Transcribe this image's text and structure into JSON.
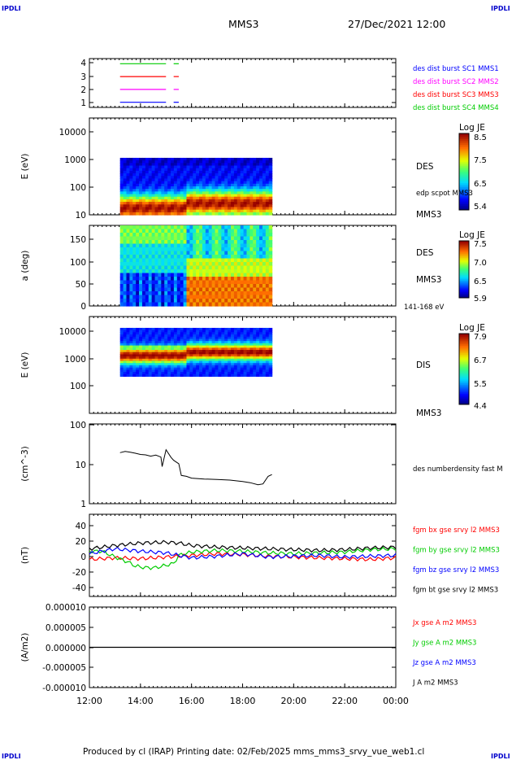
{
  "header": {
    "corner_label": "IPDLI",
    "title": "MMS3",
    "date": "27/Dec/2021 12:00"
  },
  "footer": {
    "text": "Produced by cl (IRAP)   Printing date: 02/Feb/2025   mms_mms3_srvy_vue_web1.cl"
  },
  "time_axis": {
    "ticks": [
      "12:00",
      "14:00",
      "16:00",
      "18:00",
      "20:00",
      "22:00",
      "00:00"
    ],
    "start_hours": 12,
    "end_hours": 24
  },
  "colors": {
    "blue": "#0000ff",
    "magenta": "#ff00ff",
    "red": "#ff0000",
    "green": "#00cc00",
    "black": "#000000"
  },
  "chart_data": [
    {
      "id": "burst",
      "type": "line",
      "ylim": [
        0.6,
        4.4
      ],
      "ytick_labels": [
        "4",
        "3",
        "2",
        "1"
      ],
      "legend": [
        "des dist burst SC1 MMS1",
        "des dist burst SC2 MMS2",
        "des dist burst SC3 MMS3",
        "des dist burst SC4 MMS4"
      ],
      "legend_colors": [
        "#0000ff",
        "#ff00ff",
        "#ff0000",
        "#00cc00"
      ],
      "series": [
        {
          "level": 4,
          "color": "#00cc00",
          "segments": [
            [
              13.2,
              15.0
            ],
            [
              15.3,
              15.5
            ]
          ]
        },
        {
          "level": 3,
          "color": "#ff0000",
          "segments": [
            [
              13.2,
              15.0
            ],
            [
              15.3,
              15.5
            ]
          ]
        },
        {
          "level": 2,
          "color": "#ff00ff",
          "segments": [
            [
              13.2,
              15.0
            ],
            [
              15.3,
              15.5
            ]
          ]
        },
        {
          "level": 1,
          "color": "#0000ff",
          "segments": [
            [
              13.2,
              15.0
            ],
            [
              15.3,
              15.5
            ]
          ]
        }
      ]
    },
    {
      "id": "des-energy",
      "type": "heatmap",
      "ylabel": "E (eV)",
      "scale": "log",
      "ylim": [
        10,
        25000
      ],
      "ytick_labels": [
        "10000",
        "1000",
        "100",
        "10"
      ],
      "data_xlim": [
        13.2,
        19.15
      ],
      "data_ylim": [
        10,
        1000
      ],
      "side_labels": [
        "DES",
        "edp scpot MMS3",
        "MMS3"
      ],
      "colorbar": {
        "label": "Log JE",
        "ticks": [
          "8.5",
          "7.5",
          "6.5",
          "5.4"
        ]
      }
    },
    {
      "id": "des-pitch",
      "type": "heatmap",
      "ylabel": "a (deg)",
      "ylim": [
        0,
        180
      ],
      "ytick_labels": [
        "150",
        "100",
        "50",
        "0"
      ],
      "data_xlim": [
        13.2,
        19.15
      ],
      "side_labels": [
        "DES",
        "MMS3",
        "141-168 eV"
      ],
      "colorbar": {
        "label": "Log JE",
        "ticks": [
          "7.5",
          "7.0",
          "6.5",
          "5.9"
        ]
      }
    },
    {
      "id": "dis-energy",
      "type": "heatmap",
      "ylabel": "E (eV)",
      "scale": "log",
      "ylim": [
        10,
        25000
      ],
      "ytick_labels": [
        "10000",
        "1000",
        "100"
      ],
      "data_xlim": [
        13.2,
        19.15
      ],
      "data_ylim": [
        200,
        10000
      ],
      "side_labels": [
        "DIS",
        "MMS3"
      ],
      "colorbar": {
        "label": "Log JE",
        "ticks": [
          "7.9",
          "6.7",
          "5.5",
          "4.4"
        ]
      }
    },
    {
      "id": "density",
      "type": "line",
      "ylabel": "(cm^-3)",
      "scale": "log",
      "ylim": [
        1,
        100
      ],
      "ytick_labels": [
        "100",
        "10",
        "1"
      ],
      "legend": [
        "des numberdensity fast M"
      ],
      "series": [
        {
          "name": "des numberdensity fast M",
          "color": "#000000",
          "x": [
            13.2,
            13.4,
            13.6,
            13.8,
            14.0,
            14.2,
            14.4,
            14.6,
            14.8,
            14.85,
            15.0,
            15.2,
            15.3,
            15.5,
            15.6,
            15.8,
            16.0,
            16.5,
            17.0,
            17.5,
            18.0,
            18.3,
            18.6,
            18.8,
            19.0,
            19.15
          ],
          "y": [
            19,
            20,
            19,
            18,
            17,
            17,
            16,
            17,
            15,
            8.5,
            22,
            14,
            12,
            10,
            5.2,
            5.0,
            4.5,
            4.2,
            4.0,
            3.8,
            3.5,
            3.3,
            3.0,
            3.2,
            5.0,
            5.5
          ]
        }
      ]
    },
    {
      "id": "fgm",
      "type": "line",
      "ylabel": "(nT)",
      "ylim": [
        -50,
        50
      ],
      "ytick_labels": [
        "40",
        "20",
        "0",
        "-20",
        "-40"
      ],
      "legend": [
        "fgm bx gse srvy l2 MMS3",
        "fgm by gse srvy l2 MMS3",
        "fgm bz gse srvy l2 MMS3",
        "fgm bt gse srvy l2 MMS3"
      ],
      "legend_colors": [
        "#ff0000",
        "#00cc00",
        "#0000ff",
        "#000000"
      ],
      "series": [
        {
          "name": "fgm bx gse srvy l2 MMS3",
          "color": "#ff0000",
          "x": [
            12.0,
            13.0,
            14.0,
            15.0,
            16.0,
            17.0,
            18.0,
            19.0,
            20.0,
            21.0,
            22.0,
            23.0,
            24.0
          ],
          "y": [
            -5,
            -3,
            -4,
            -2,
            0,
            2,
            1,
            -1,
            -2,
            -3,
            -4,
            -5,
            -3
          ]
        },
        {
          "name": "fgm by gse srvy l2 MMS3",
          "color": "#00cc00",
          "x": [
            12.0,
            12.5,
            13.0,
            13.5,
            13.8,
            14.2,
            14.6,
            15.0,
            15.3,
            15.5,
            16.0,
            17.0,
            18.0,
            19.0,
            20.0,
            21.0,
            22.0,
            23.0,
            24.0
          ],
          "y": [
            5,
            5,
            -2,
            -8,
            -13,
            -15,
            -15,
            -12,
            -10,
            0,
            4,
            6,
            5,
            3,
            2,
            3,
            4,
            7,
            8
          ]
        },
        {
          "name": "fgm bz gse srvy l2 MMS3",
          "color": "#0000ff",
          "x": [
            12.0,
            13.0,
            14.0,
            15.0,
            16.0,
            17.0,
            18.0,
            19.0,
            20.0,
            21.0,
            22.0,
            23.0,
            24.0
          ],
          "y": [
            2,
            8,
            5,
            3,
            -3,
            -1,
            2,
            -2,
            -1,
            0,
            -2,
            -1,
            0
          ]
        },
        {
          "name": "fgm bt gse srvy l2 MMS3",
          "color": "#000000",
          "x": [
            12.0,
            13.0,
            14.0,
            15.0,
            15.5,
            16.0,
            17.0,
            18.0,
            19.0,
            20.0,
            21.0,
            22.0,
            23.0,
            24.0
          ],
          "y": [
            8,
            12,
            15,
            16,
            15,
            12,
            10,
            9,
            8,
            7,
            6,
            7,
            9,
            10
          ]
        }
      ]
    },
    {
      "id": "current",
      "type": "line",
      "ylabel": "(A/m2)",
      "ylim": [
        -1e-05,
        1e-05
      ],
      "ytick_labels": [
        "0.000010",
        "0.000005",
        "0.000000",
        "-0.000005",
        "-0.000010"
      ],
      "legend": [
        "Jx gse A m2 MMS3",
        "Jy gse A m2 MMS3",
        "Jz gse A m2 MMS3",
        "J A m2 MMS3"
      ],
      "legend_colors": [
        "#ff0000",
        "#00cc00",
        "#0000ff",
        "#000000"
      ],
      "series": [
        {
          "name": "J A m2 MMS3",
          "color": "#000000",
          "x": [
            12.0,
            24.0
          ],
          "y": [
            0,
            0
          ]
        }
      ]
    }
  ]
}
